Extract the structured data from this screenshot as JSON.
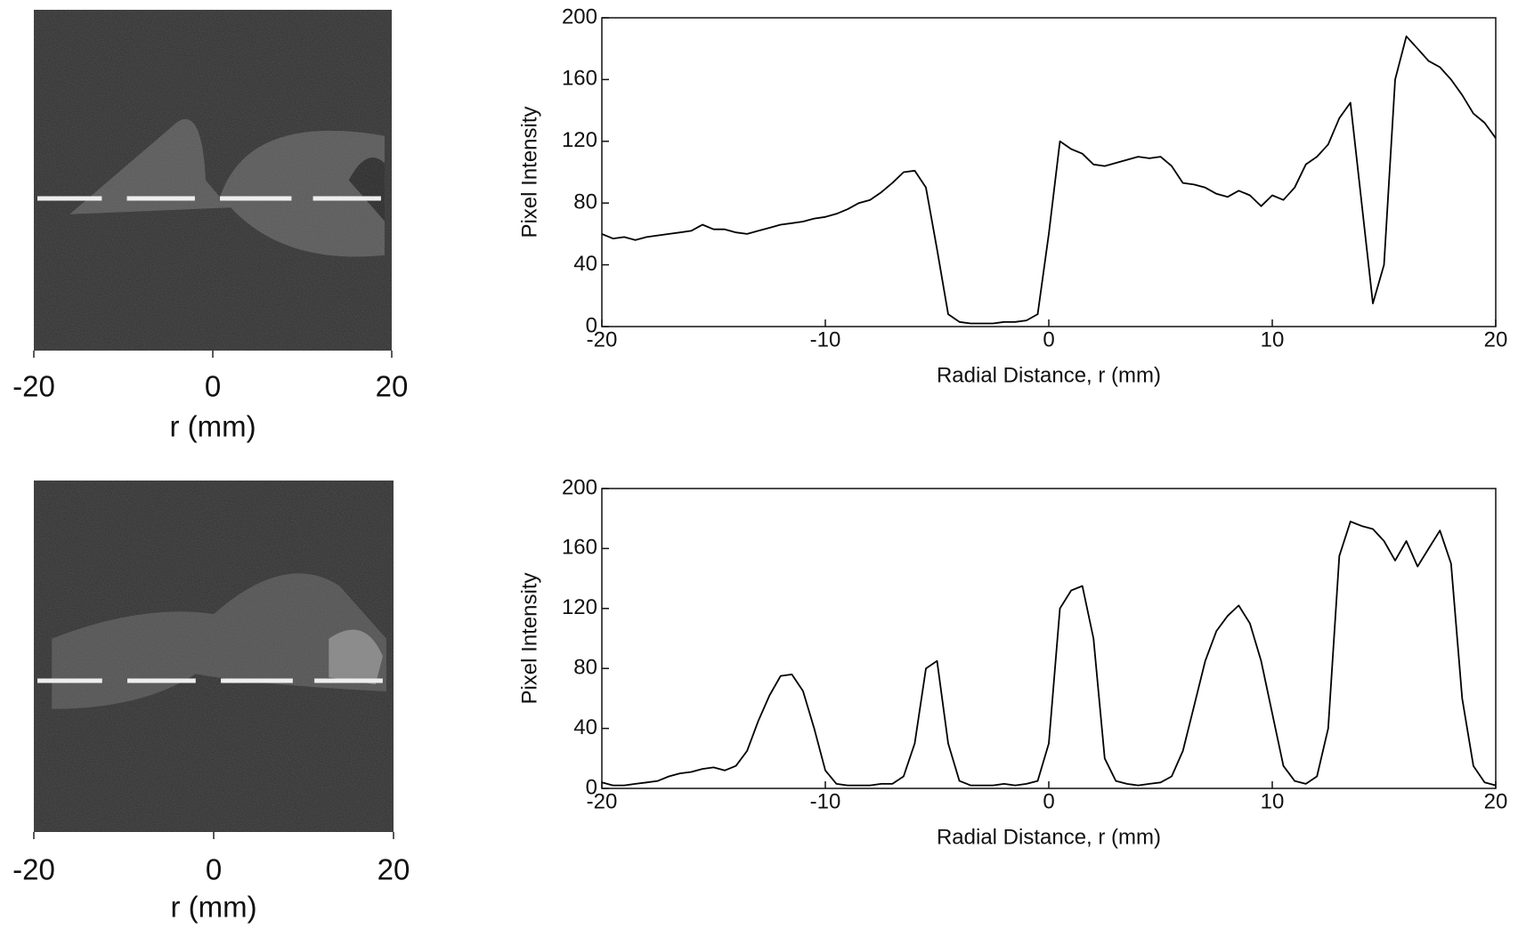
{
  "chart_data": [
    {
      "type": "image",
      "xlim": [
        -20,
        20
      ],
      "xticks": [
        -20,
        0,
        20
      ],
      "xlabel": "r (mm)"
    },
    {
      "type": "line",
      "xlabel": "Radial Distance, r (mm)",
      "ylabel": "Pixel Intensity",
      "color": "#000000",
      "xlim": [
        -20,
        20
      ],
      "xticks": [
        -20,
        -10,
        0,
        10,
        20
      ],
      "ylim": [
        0,
        200
      ],
      "yticks": [
        0,
        40,
        80,
        120,
        160,
        200
      ],
      "x": [
        -20,
        -19.5,
        -19,
        -18.5,
        -18,
        -17.5,
        -17,
        -16.5,
        -16,
        -15.5,
        -15,
        -14.5,
        -14,
        -13.5,
        -13,
        -12.5,
        -12,
        -11.5,
        -11,
        -10.5,
        -10,
        -9.5,
        -9,
        -8.5,
        -8,
        -7.5,
        -7,
        -6.5,
        -6,
        -5.5,
        -5,
        -4.5,
        -4,
        -3.5,
        -3,
        -2.5,
        -2,
        -1.5,
        -1,
        -0.5,
        0,
        0.5,
        1,
        1.5,
        2,
        2.5,
        3,
        3.5,
        4,
        4.5,
        5,
        5.5,
        6,
        6.5,
        7,
        7.5,
        8,
        8.5,
        9,
        9.5,
        10,
        10.5,
        11,
        11.5,
        12,
        12.5,
        13,
        13.5,
        14,
        14.5,
        15,
        15.5,
        16,
        16.5,
        17,
        17.5,
        18,
        18.5,
        19,
        19.5,
        20
      ],
      "values": [
        60,
        57,
        58,
        56,
        58,
        59,
        60,
        61,
        62,
        66,
        63,
        63,
        61,
        60,
        62,
        64,
        66,
        67,
        68,
        70,
        71,
        73,
        76,
        80,
        82,
        87,
        93,
        100,
        101,
        90,
        50,
        8,
        3,
        2,
        2,
        2,
        3,
        3,
        4,
        8,
        60,
        120,
        115,
        112,
        105,
        104,
        106,
        108,
        110,
        109,
        110,
        104,
        93,
        92,
        90,
        86,
        84,
        88,
        85,
        78,
        85,
        82,
        90,
        105,
        110,
        118,
        135,
        145,
        80,
        15,
        40,
        160,
        188,
        180,
        172,
        168,
        160,
        150,
        138,
        132,
        122
      ]
    },
    {
      "type": "image",
      "xlim": [
        -20,
        20
      ],
      "xticks": [
        -20,
        0,
        20
      ],
      "xlabel": "r (mm)"
    },
    {
      "type": "line",
      "xlabel": "Radial Distance, r (mm)",
      "ylabel": "Pixel Intensity",
      "color": "#000000",
      "xlim": [
        -20,
        20
      ],
      "xticks": [
        -20,
        -10,
        0,
        10,
        20
      ],
      "ylim": [
        0,
        200
      ],
      "yticks": [
        0,
        40,
        80,
        120,
        160,
        200
      ],
      "x": [
        -20,
        -19.5,
        -19,
        -18.5,
        -18,
        -17.5,
        -17,
        -16.5,
        -16,
        -15.5,
        -15,
        -14.5,
        -14,
        -13.5,
        -13,
        -12.5,
        -12,
        -11.5,
        -11,
        -10.5,
        -10,
        -9.5,
        -9,
        -8.5,
        -8,
        -7.5,
        -7,
        -6.5,
        -6,
        -5.5,
        -5,
        -4.5,
        -4,
        -3.5,
        -3,
        -2.5,
        -2,
        -1.5,
        -1,
        -0.5,
        0,
        0.5,
        1,
        1.5,
        2,
        2.5,
        3,
        3.5,
        4,
        4.5,
        5,
        5.5,
        6,
        6.5,
        7,
        7.5,
        8,
        8.5,
        9,
        9.5,
        10,
        10.5,
        11,
        11.5,
        12,
        12.5,
        13,
        13.5,
        14,
        14.5,
        15,
        15.5,
        16,
        16.5,
        17,
        17.5,
        18,
        18.5,
        19,
        19.5,
        20
      ],
      "values": [
        4,
        2,
        2,
        3,
        4,
        5,
        8,
        10,
        11,
        13,
        14,
        12,
        15,
        25,
        45,
        62,
        75,
        76,
        65,
        40,
        12,
        3,
        2,
        2,
        2,
        3,
        3,
        8,
        30,
        80,
        85,
        30,
        5,
        2,
        2,
        2,
        3,
        2,
        3,
        5,
        30,
        120,
        132,
        135,
        100,
        20,
        5,
        3,
        2,
        3,
        4,
        8,
        25,
        55,
        85,
        105,
        115,
        122,
        110,
        85,
        50,
        15,
        5,
        3,
        8,
        40,
        155,
        178,
        175,
        173,
        165,
        152,
        165,
        148,
        160,
        172,
        150,
        60,
        15,
        4,
        2
      ]
    }
  ]
}
